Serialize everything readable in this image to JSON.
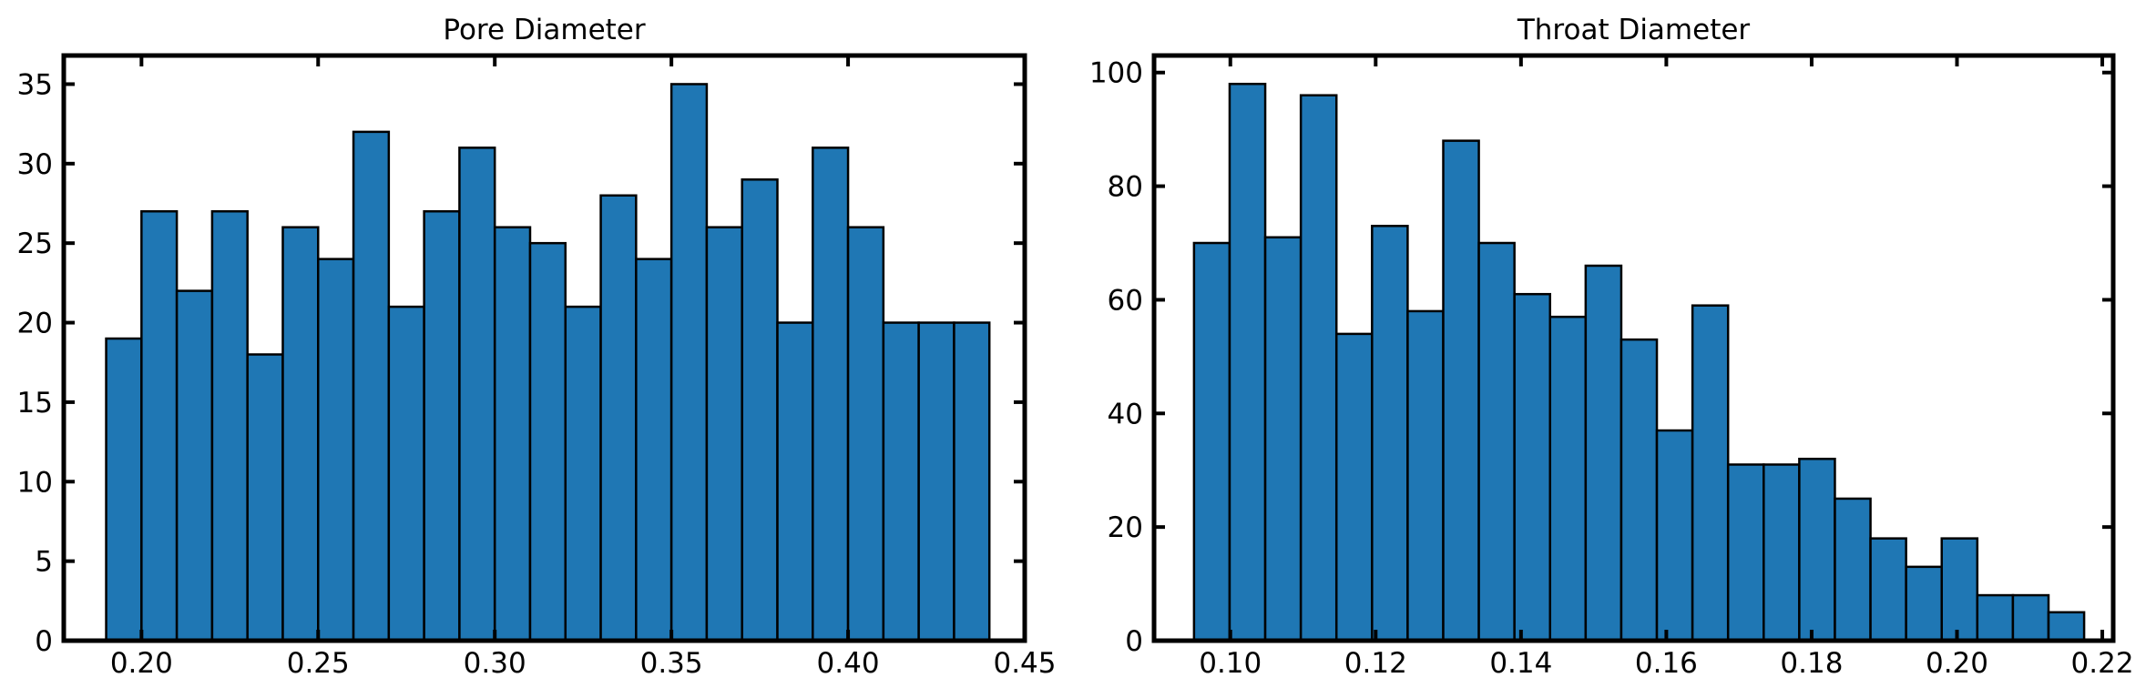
{
  "chart_data": [
    {
      "type": "bar",
      "subtype": "histogram",
      "title": "Pore Diameter",
      "xlabel": "",
      "ylabel": "",
      "xlim": [
        0.178,
        0.45
      ],
      "ylim": [
        0,
        36.8
      ],
      "bin_start": 0.19,
      "bin_width": 0.01,
      "values": [
        19,
        27,
        22,
        27,
        18,
        26,
        24,
        32,
        21,
        27,
        31,
        26,
        25,
        21,
        28,
        24,
        35,
        26,
        29,
        20,
        31,
        26,
        20,
        20,
        20
      ],
      "xticks": [
        0.2,
        0.25,
        0.3,
        0.35,
        0.4,
        0.45
      ],
      "xtick_labels": [
        "0.20",
        "0.25",
        "0.30",
        "0.35",
        "0.40",
        "0.45"
      ],
      "yticks": [
        0,
        5,
        10,
        15,
        20,
        25,
        30,
        35
      ],
      "ytick_labels": [
        "0",
        "5",
        "10",
        "15",
        "20",
        "25",
        "30",
        "35"
      ],
      "bar_color": "#1f77b4",
      "edge_color": "#000000",
      "grid": false,
      "legend": "none"
    },
    {
      "type": "bar",
      "subtype": "histogram",
      "title": "Throat Diameter",
      "xlabel": "",
      "ylabel": "",
      "xlim": [
        0.0895,
        0.2215
      ],
      "ylim": [
        0,
        103
      ],
      "bin_start": 0.095,
      "bin_width": 0.0049,
      "values": [
        70,
        98,
        71,
        96,
        54,
        73,
        58,
        88,
        70,
        61,
        57,
        66,
        53,
        37,
        59,
        31,
        31,
        32,
        25,
        18,
        13,
        18,
        8,
        8,
        5
      ],
      "xticks": [
        0.1,
        0.12,
        0.14,
        0.16,
        0.18,
        0.2,
        0.22
      ],
      "xtick_labels": [
        "0.10",
        "0.12",
        "0.14",
        "0.16",
        "0.18",
        "0.20",
        "0.22"
      ],
      "yticks": [
        0,
        20,
        40,
        60,
        80,
        100
      ],
      "ytick_labels": [
        "0",
        "20",
        "40",
        "60",
        "80",
        "100"
      ],
      "bar_color": "#1f77b4",
      "edge_color": "#000000",
      "grid": false,
      "legend": "none"
    }
  ]
}
